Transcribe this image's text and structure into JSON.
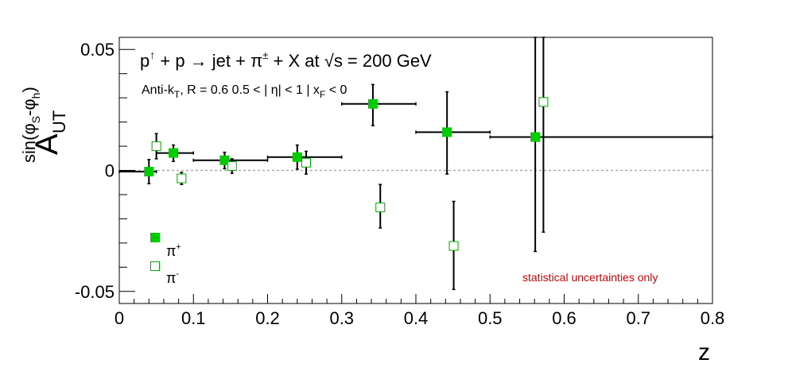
{
  "chart_data": {
    "type": "scatter",
    "title": "p↑ + p → jet + π± + X at √s = 200 GeV",
    "subtitle": "Anti-kT, R = 0.6   0.5 < | η| < 1 | xF < 0",
    "note": "statistical uncertainties only",
    "xlabel": "z",
    "ylabel_main": "A",
    "ylabel_sub": "UT",
    "ylabel_sup": "sin(φS-φh)",
    "xlim": [
      0,
      0.8
    ],
    "ylim": [
      -0.055,
      0.055
    ],
    "x_ticks": [
      "0",
      "0.1",
      "0.2",
      "0.3",
      "0.4",
      "0.5",
      "0.6",
      "0.7",
      "0.8"
    ],
    "y_ticks": [
      "-0.05",
      "0",
      "0.05"
    ],
    "zero_line": true,
    "series": [
      {
        "name": "π+",
        "marker": "filled-square",
        "color": "#00cc00",
        "points": [
          {
            "x": 0.04,
            "y": -0.0005,
            "xlo": 0.0,
            "xhi": 0.05,
            "ylo": -0.0055,
            "yhi": 0.0045
          },
          {
            "x": 0.073,
            "y": 0.0072,
            "xlo": 0.05,
            "xhi": 0.1,
            "ylo": 0.0037,
            "yhi": 0.0105
          },
          {
            "x": 0.142,
            "y": 0.0042,
            "xlo": 0.1,
            "xhi": 0.2,
            "ylo": 0.0007,
            "yhi": 0.0075
          },
          {
            "x": 0.24,
            "y": 0.0055,
            "xlo": 0.2,
            "xhi": 0.3,
            "ylo": 0.0005,
            "yhi": 0.0105
          },
          {
            "x": 0.342,
            "y": 0.0275,
            "xlo": 0.3,
            "xhi": 0.4,
            "ylo": 0.0185,
            "yhi": 0.0355
          },
          {
            "x": 0.442,
            "y": 0.0158,
            "xlo": 0.4,
            "xhi": 0.5,
            "ylo": -0.0015,
            "yhi": 0.0325
          },
          {
            "x": 0.561,
            "y": 0.0138,
            "xlo": 0.5,
            "xhi": 0.8,
            "ylo": -0.0335,
            "yhi": 0.055
          }
        ]
      },
      {
        "name": "π-",
        "marker": "open-square",
        "color": "#00aa00",
        "points": [
          {
            "x": 0.05,
            "y": 0.01,
            "ylo": 0.0048,
            "yhi": 0.0152
          },
          {
            "x": 0.084,
            "y": -0.0033,
            "ylo": -0.0058,
            "yhi": -0.0008
          },
          {
            "x": 0.152,
            "y": 0.0018,
            "ylo": -0.0012,
            "yhi": 0.0048
          },
          {
            "x": 0.252,
            "y": 0.0032,
            "ylo": -0.0015,
            "yhi": 0.0079
          },
          {
            "x": 0.352,
            "y": -0.0153,
            "ylo": -0.0238,
            "yhi": -0.0058
          },
          {
            "x": 0.451,
            "y": -0.0312,
            "ylo": -0.0492,
            "yhi": -0.0128
          },
          {
            "x": 0.572,
            "y": 0.0283,
            "ylo": -0.0255,
            "yhi": 0.055
          }
        ]
      }
    ],
    "legend": {
      "placement": "bottom-left",
      "entries": [
        "π+",
        "π-"
      ]
    }
  }
}
